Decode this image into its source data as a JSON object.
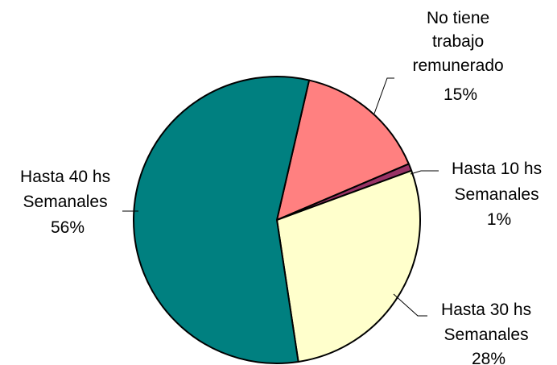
{
  "chart_data": {
    "type": "pie",
    "title": "",
    "start_angle_deg": 13,
    "direction": "clockwise",
    "slices": [
      {
        "label": [
          "No tiene",
          "trabajo",
          "remunerado"
        ],
        "pct_label": "15%",
        "value": 15,
        "color": "#FF8080"
      },
      {
        "label": [
          "Hasta 10 hs",
          "Semanales"
        ],
        "pct_label": "1%",
        "value": 0.8,
        "color": "#993366"
      },
      {
        "label": [
          "Hasta 30 hs",
          "Semanales"
        ],
        "pct_label": "28%",
        "value": 28.2,
        "color": "#FFFFCC"
      },
      {
        "label": [
          "Hasta 40 hs",
          "Semanales"
        ],
        "pct_label": "56%",
        "value": 56,
        "color": "#008080"
      }
    ]
  }
}
